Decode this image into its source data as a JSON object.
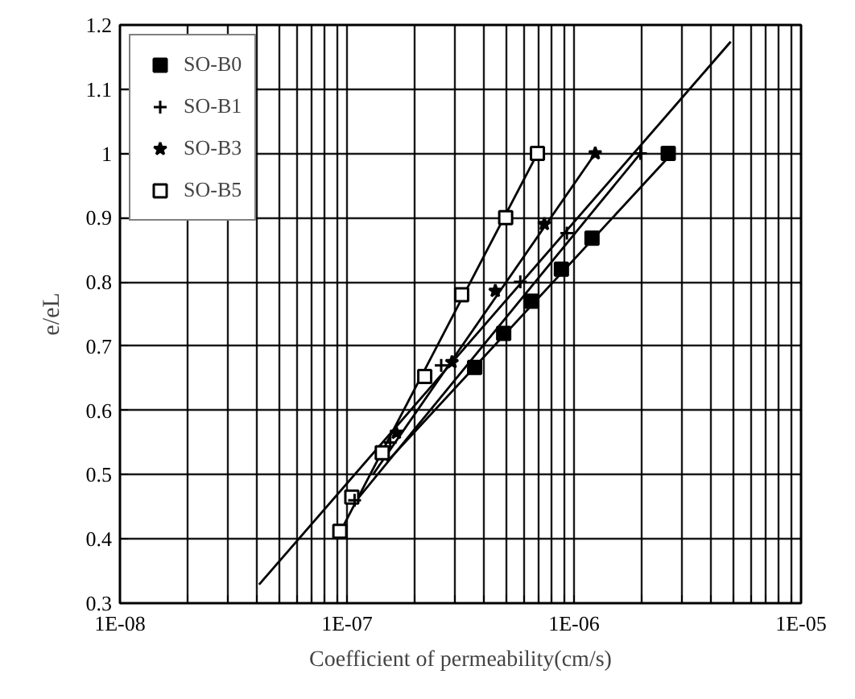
{
  "chart_data": {
    "type": "scatter",
    "xlabel": "Coefficient of permeability(cm/s)",
    "ylabel": "e/eL",
    "log": "x",
    "grid": true,
    "legend": "top left",
    "xlim": [
      1e-08,
      1e-05
    ],
    "ylim": [
      0.3,
      1.2
    ],
    "xticks": [
      {
        "value": 1e-08,
        "label": "1E-08"
      },
      {
        "value": 2e-08,
        "label": null
      },
      {
        "value": 3e-08,
        "label": null
      },
      {
        "value": 4e-08,
        "label": null
      },
      {
        "value": 5e-08,
        "label": null
      },
      {
        "value": 6e-08,
        "label": null
      },
      {
        "value": 7e-08,
        "label": null
      },
      {
        "value": 8e-08,
        "label": null
      },
      {
        "value": 9e-08,
        "label": null
      },
      {
        "value": 1e-07,
        "label": "1E-07"
      },
      {
        "value": 2e-07,
        "label": null
      },
      {
        "value": 3e-07,
        "label": null
      },
      {
        "value": 4e-07,
        "label": null
      },
      {
        "value": 5e-07,
        "label": null
      },
      {
        "value": 6e-07,
        "label": null
      },
      {
        "value": 7e-07,
        "label": null
      },
      {
        "value": 8e-07,
        "label": null
      },
      {
        "value": 9e-07,
        "label": null
      },
      {
        "value": 1e-06,
        "label": "1E-06"
      },
      {
        "value": 2e-06,
        "label": null
      },
      {
        "value": 3e-06,
        "label": null
      },
      {
        "value": 4e-06,
        "label": null
      },
      {
        "value": 5e-06,
        "label": null
      },
      {
        "value": 6e-06,
        "label": null
      },
      {
        "value": 7e-06,
        "label": null
      },
      {
        "value": 8e-06,
        "label": null
      },
      {
        "value": 9e-06,
        "label": null
      },
      {
        "value": 1e-05,
        "label": "1E-05"
      }
    ],
    "yticks": [
      0.3,
      0.4,
      0.5,
      0.6,
      0.7,
      0.8,
      0.9,
      1,
      1.1,
      1.2
    ],
    "series": [
      {
        "name": "SO-B0",
        "color": "#000000",
        "marker": "square",
        "x": [
          3.65e-07,
          4.9e-07,
          6.5e-07,
          8.8e-07,
          1.2e-06,
          2.6e-06
        ],
        "values": [
          0.667,
          0.72,
          0.77,
          0.82,
          0.868,
          1.0
        ]
      },
      {
        "name": "SO-B1",
        "color": "#000000",
        "marker": "cross",
        "x": [
          1.08e-07,
          1.55e-07,
          2.6e-07,
          5.8e-07,
          9.3e-07,
          1.96e-06
        ],
        "values": [
          0.46,
          0.55,
          0.67,
          0.8,
          0.876,
          1.0
        ]
      },
      {
        "name": "SO-B3",
        "color": "#000000",
        "marker": "star",
        "x": [
          1.65e-07,
          2.9e-07,
          4.5e-07,
          7.4e-07,
          1.24e-06
        ],
        "values": [
          0.565,
          0.675,
          0.786,
          0.89,
          1.0
        ]
      },
      {
        "name": "SO-B5",
        "color": "#000000",
        "marker": "square",
        "x": [
          9.3e-08,
          1.05e-07,
          1.43e-07,
          2.2e-07,
          3.2e-07,
          5e-07,
          6.9e-07
        ],
        "values": [
          0.412,
          0.465,
          0.534,
          0.653,
          0.78,
          0.9,
          1.0
        ]
      },
      {
        "type": "line",
        "color": "#000000",
        "x": [
          9e-08,
          6.9e-07
        ],
        "values": [
          0.4,
          1.0
        ]
      },
      {
        "type": "line",
        "color": "#000000",
        "x": [
          1.3e-07,
          1.24e-06
        ],
        "values": [
          0.5,
          1.0
        ]
      },
      {
        "type": "line",
        "color": "#000000",
        "x": [
          1.1e-07,
          1.96e-06
        ],
        "values": [
          0.46,
          1.0
        ]
      },
      {
        "type": "line",
        "color": "#000000",
        "x": [
          1.5e-07,
          2.7e-06
        ],
        "values": [
          0.52,
          1.0
        ]
      },
      {
        "type": "line",
        "color": "#000000",
        "x": [
          4.1e-08,
          4.9e-06
        ],
        "values": [
          0.329,
          1.174
        ]
      }
    ]
  }
}
